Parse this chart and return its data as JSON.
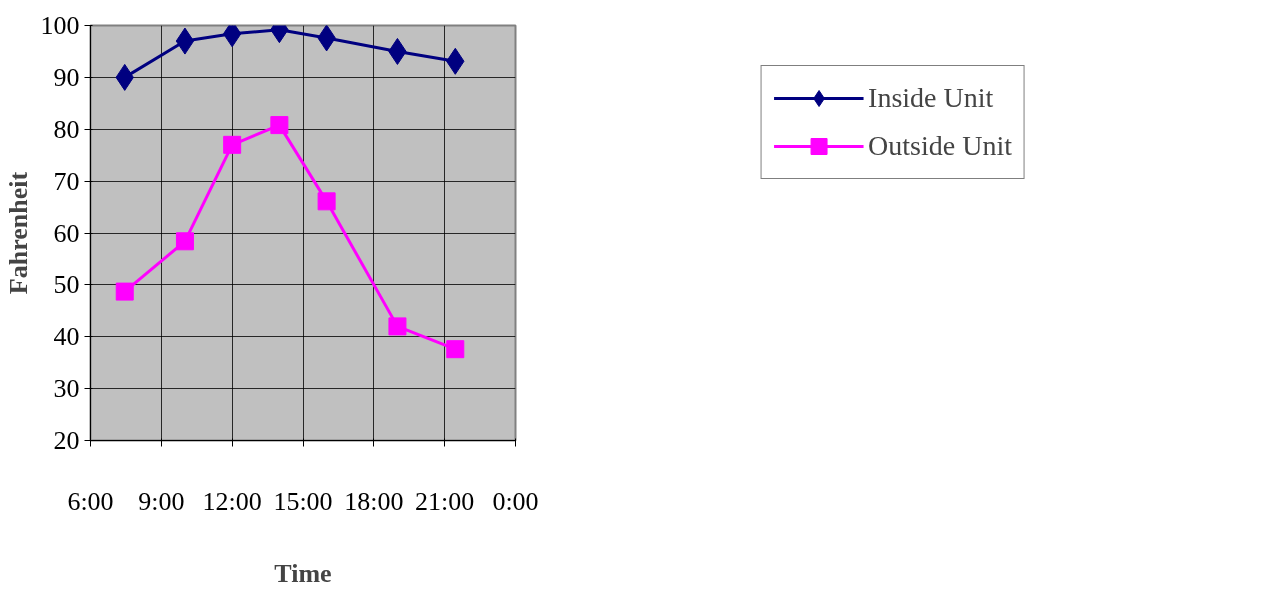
{
  "chart_data": {
    "type": "line",
    "xlabel": "Time",
    "ylabel": "Fahrenheit",
    "xlim": [
      6,
      24
    ],
    "xticks": [
      {
        "value": 6,
        "label": "6:00"
      },
      {
        "value": 9,
        "label": "9:00"
      },
      {
        "value": 12,
        "label": "12:00"
      },
      {
        "value": 15,
        "label": "15:00"
      },
      {
        "value": 18,
        "label": "18:00"
      },
      {
        "value": 21,
        "label": "21:00"
      },
      {
        "value": 24,
        "label": "0:00"
      }
    ],
    "ylim": [
      20,
      100
    ],
    "yticks": [
      20,
      30,
      40,
      50,
      60,
      70,
      80,
      90,
      100
    ],
    "grid": true,
    "legend": "right",
    "line_style": "solid",
    "series": [
      {
        "name": "Inside Unit",
        "color": "#000080",
        "marker": "diamond",
        "x": [
          7.45,
          10,
          12,
          14,
          16,
          19,
          21.45
        ],
        "values": [
          90,
          97,
          98.4,
          99.2,
          97.6,
          95,
          93.1
        ]
      },
      {
        "name": "Outside Unit",
        "color": "#ff00ff",
        "marker": "square",
        "x": [
          7.45,
          10,
          12,
          14,
          16,
          19,
          21.45
        ],
        "values": [
          48.7,
          58.4,
          77,
          80.8,
          66.1,
          42,
          37.6
        ]
      }
    ]
  }
}
